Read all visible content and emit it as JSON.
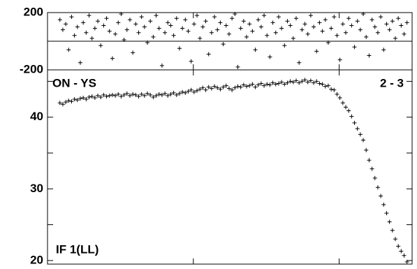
{
  "chart_data": [
    {
      "type": "scatter",
      "ylim": [
        -200,
        200
      ],
      "yticks": [
        -200,
        200
      ],
      "reference_line": 0,
      "xlim": [
        0,
        100
      ],
      "xticks": [
        40,
        80
      ],
      "color": "#000000",
      "x": [
        3.4,
        4.2,
        5,
        5.8,
        6.6,
        7.4,
        8.2,
        9,
        9.8,
        10.6,
        11.4,
        12.2,
        13,
        13.8,
        14.6,
        15.4,
        16.2,
        17,
        17.8,
        18.6,
        19.4,
        20.2,
        21,
        21.8,
        22.6,
        23.4,
        24.2,
        25,
        25.8,
        26.6,
        27.4,
        28.2,
        29,
        29.8,
        30.6,
        31.4,
        32.2,
        33,
        33.8,
        34.6,
        35.4,
        36.2,
        37,
        37.8,
        38.6,
        39.4,
        40.2,
        41,
        41.8,
        42.6,
        43.4,
        44.2,
        45,
        45.8,
        46.6,
        47.4,
        48.2,
        49,
        49.8,
        50.6,
        51.4,
        52.2,
        53,
        53.8,
        54.6,
        55.4,
        56.2,
        57,
        57.8,
        58.6,
        59.4,
        60.2,
        61,
        61.8,
        62.6,
        63.4,
        64.2,
        65,
        65.8,
        66.6,
        67.4,
        68.2,
        69,
        69.8,
        70.6,
        71.4,
        72.2,
        73,
        73.8,
        74.6,
        75.4,
        76.2,
        77,
        77.8,
        78.6,
        79.4,
        80.2,
        81,
        81.8,
        82.6,
        83.4,
        84.2,
        85,
        85.8,
        86.6,
        87.4,
        88.2,
        89,
        89.8,
        90.6,
        91.4,
        92.2,
        93,
        93.8,
        94.6,
        95.4,
        96.2,
        97,
        97.8,
        98.6
      ],
      "values": [
        150,
        80,
        120,
        -60,
        170,
        40,
        100,
        -150,
        130,
        60,
        180,
        20,
        90,
        140,
        -30,
        110,
        160,
        70,
        -120,
        50,
        130,
        190,
        10,
        80,
        150,
        -80,
        120,
        60,
        170,
        100,
        -10,
        140,
        30,
        180,
        90,
        -170,
        60,
        130,
        110,
        40,
        160,
        -50,
        90,
        150,
        70,
        -140,
        120,
        180,
        20,
        100,
        140,
        -90,
        60,
        170,
        80,
        130,
        -20,
        110,
        50,
        160,
        190,
        -180,
        90,
        140,
        30,
        120,
        70,
        -60,
        150,
        100,
        180,
        40,
        -110,
        130,
        60,
        170,
        90,
        -30,
        140,
        110,
        20,
        160,
        -150,
        80,
        120,
        50,
        180,
        100,
        -70,
        130,
        70,
        150,
        -10,
        90,
        170,
        40,
        -130,
        120,
        60,
        160,
        110,
        -40,
        140,
        80,
        190,
        30,
        -100,
        150,
        100,
        60,
        170,
        -60,
        120,
        80,
        140,
        20,
        160,
        110,
        50,
        130
      ]
    },
    {
      "type": "scatter",
      "ylim": [
        19.5,
        46.6
      ],
      "yticks": [
        20,
        30,
        40
      ],
      "minor_yticks": [
        25,
        35,
        45
      ],
      "xlim": [
        0,
        100
      ],
      "xticks": [
        40,
        80
      ],
      "color": "#000000",
      "annotations": [
        "ON - YS",
        "2 - 3",
        "IF 1(LL)"
      ],
      "x": [
        3.4,
        4.2,
        5,
        5.8,
        6.6,
        7.4,
        8.2,
        9,
        9.8,
        10.6,
        11.4,
        12.2,
        13,
        13.8,
        14.6,
        15.4,
        16.2,
        17,
        17.8,
        18.6,
        19.4,
        20.2,
        21,
        21.8,
        22.6,
        23.4,
        24.2,
        25,
        25.8,
        26.6,
        27.4,
        28.2,
        29,
        29.8,
        30.6,
        31.4,
        32.2,
        33,
        33.8,
        34.6,
        35.4,
        36.2,
        37,
        37.8,
        38.6,
        39.4,
        40.2,
        41,
        41.8,
        42.6,
        43.4,
        44.2,
        45,
        45.8,
        46.6,
        47.4,
        48.2,
        49,
        49.8,
        50.6,
        51.4,
        52.2,
        53,
        53.8,
        54.6,
        55.4,
        56.2,
        57,
        57.8,
        58.6,
        59.4,
        60.2,
        61,
        61.8,
        62.6,
        63.4,
        64.2,
        65,
        65.8,
        66.6,
        67.4,
        68.2,
        69,
        69.8,
        70.6,
        71.4,
        72.2,
        73,
        73.8,
        74.6,
        75.4,
        76.2,
        77,
        77.8,
        78.6,
        79.4,
        80.2,
        81,
        81.8,
        82.6,
        83.4,
        84.2,
        85,
        85.8,
        86.6,
        87.4,
        88.2,
        89,
        89.8,
        90.6,
        91.4,
        92.2,
        93,
        93.8,
        94.6,
        95.4,
        96.2,
        97,
        97.8,
        98.6
      ],
      "values": [
        42.0,
        41.8,
        42.1,
        42.3,
        42.2,
        42.5,
        42.4,
        42.6,
        42.7,
        42.5,
        42.8,
        42.9,
        42.7,
        43.0,
        42.8,
        43.1,
        42.9,
        43.0,
        43.1,
        43.0,
        43.2,
        42.9,
        43.1,
        43.3,
        43.0,
        43.2,
        43.1,
        42.9,
        43.2,
        43.0,
        43.3,
        43.1,
        42.8,
        43.0,
        43.2,
        43.1,
        43.3,
        43.0,
        43.2,
        43.4,
        43.1,
        43.3,
        43.5,
        43.4,
        43.6,
        43.8,
        43.5,
        43.7,
        43.9,
        44.1,
        43.8,
        44.2,
        44.0,
        44.3,
        44.1,
        43.9,
        44.2,
        44.4,
        44.0,
        43.8,
        44.1,
        44.3,
        44.2,
        44.5,
        44.3,
        44.4,
        44.6,
        44.2,
        44.5,
        44.7,
        44.4,
        44.6,
        44.5,
        44.8,
        44.6,
        44.7,
        44.9,
        44.6,
        44.8,
        45.0,
        44.9,
        45.1,
        44.8,
        45.0,
        45.2,
        44.9,
        45.1,
        44.8,
        45.0,
        44.7,
        44.6,
        44.3,
        44.4,
        43.9,
        43.8,
        43.2,
        42.7,
        42.0,
        41.4,
        40.9,
        40.1,
        39.2,
        38.4,
        37.6,
        36.8,
        35.4,
        34.0,
        32.8,
        31.5,
        30.2,
        29.0,
        27.8,
        26.6,
        25.4,
        24.2,
        23.0,
        22.0,
        21.3,
        20.7,
        19.8
      ]
    }
  ]
}
